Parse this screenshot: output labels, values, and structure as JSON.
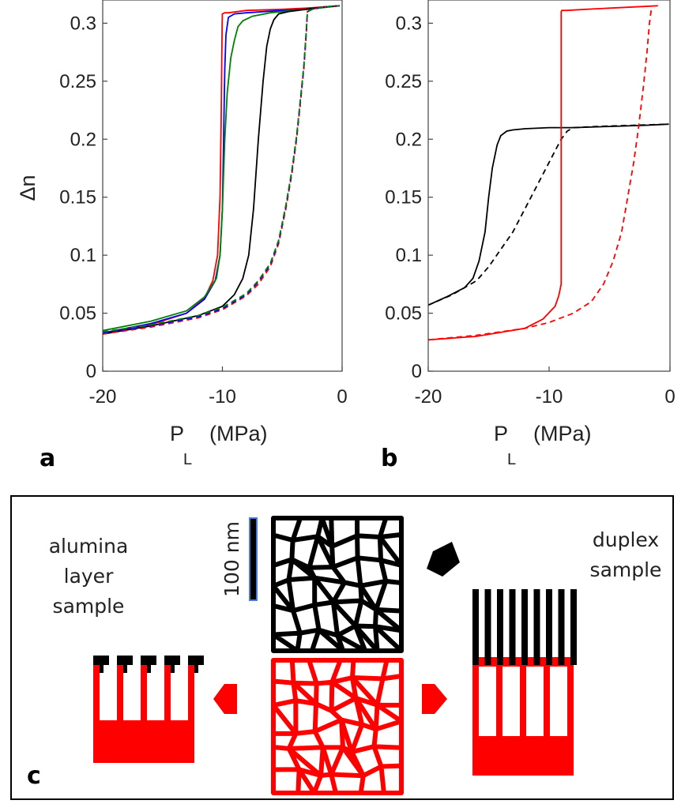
{
  "panels": {
    "a": {
      "label": "a"
    },
    "b": {
      "label": "b"
    },
    "c": {
      "label": "c"
    }
  },
  "chart_data": [
    {
      "type": "line",
      "panel": "a",
      "xlabel_main": "P",
      "xlabel_sub": "L",
      "xlabel_unit": "(MPa)",
      "ylabel": "Δn",
      "xlim": [
        -20,
        0
      ],
      "ylim": [
        0,
        0.32
      ],
      "xticks": [
        -20,
        -10,
        0
      ],
      "xtick_labels": [
        "-20",
        "-10",
        "0"
      ],
      "yticks": [
        0,
        0.05,
        0.1,
        0.15,
        0.2,
        0.25,
        0.3
      ],
      "ytick_labels": [
        "0",
        "0.05",
        "0.1",
        "0.15",
        "0.2",
        "0.25",
        "0.3"
      ],
      "series": [
        {
          "color": "#ff0000",
          "style": "solid",
          "x": [
            -20,
            -16,
            -13,
            -11.5,
            -10.8,
            -10.4,
            -10.2,
            -10.1,
            -10.05,
            -10.02,
            -10,
            -9.8,
            -9.5,
            -8,
            -5,
            -3,
            -1.5,
            -0.2
          ],
          "y": [
            0.032,
            0.04,
            0.05,
            0.063,
            0.078,
            0.1,
            0.15,
            0.22,
            0.27,
            0.3,
            0.308,
            0.309,
            0.309,
            0.311,
            0.312,
            0.313,
            0.314,
            0.315
          ]
        },
        {
          "color": "#0000ff",
          "style": "solid",
          "x": [
            -20,
            -16,
            -13,
            -11.5,
            -10.6,
            -10.2,
            -10,
            -9.9,
            -9.8,
            -9.7,
            -9.5,
            -9,
            -8,
            -5,
            -3,
            -1.5,
            -0.2
          ],
          "y": [
            0.033,
            0.041,
            0.05,
            0.062,
            0.078,
            0.1,
            0.14,
            0.2,
            0.26,
            0.29,
            0.305,
            0.308,
            0.309,
            0.311,
            0.312,
            0.314,
            0.315
          ]
        },
        {
          "color": "#008000",
          "style": "solid",
          "x": [
            -20,
            -16,
            -13,
            -11.5,
            -10.5,
            -10.2,
            -10,
            -9.8,
            -9.6,
            -9.3,
            -9,
            -8.7,
            -8.3,
            -7.5,
            -6,
            -4,
            -2,
            -0.2
          ],
          "y": [
            0.035,
            0.043,
            0.052,
            0.064,
            0.08,
            0.1,
            0.14,
            0.2,
            0.24,
            0.27,
            0.285,
            0.297,
            0.302,
            0.306,
            0.309,
            0.311,
            0.313,
            0.315
          ]
        },
        {
          "color": "#000000",
          "style": "solid",
          "x": [
            -20,
            -16,
            -12,
            -10,
            -9,
            -8.3,
            -7.8,
            -7.4,
            -7,
            -6.6,
            -6.3,
            -6,
            -5.7,
            -5.3,
            -4.5,
            -3,
            -1.5,
            -0.2
          ],
          "y": [
            0.032,
            0.039,
            0.048,
            0.056,
            0.066,
            0.08,
            0.1,
            0.14,
            0.2,
            0.25,
            0.28,
            0.295,
            0.303,
            0.308,
            0.31,
            0.312,
            0.314,
            0.315
          ]
        },
        {
          "color": "#ff0000",
          "style": "dashed",
          "x": [
            -20,
            -16,
            -12,
            -10,
            -8,
            -7,
            -6,
            -5.3,
            -4.7,
            -4.2,
            -3.8,
            -3.5,
            -3.2,
            -3,
            -2.9,
            -2.5,
            -1.5,
            -0.2
          ],
          "y": [
            0.032,
            0.038,
            0.046,
            0.053,
            0.065,
            0.075,
            0.09,
            0.11,
            0.14,
            0.17,
            0.2,
            0.23,
            0.26,
            0.29,
            0.31,
            0.312,
            0.314,
            0.315
          ]
        },
        {
          "color": "#0000ff",
          "style": "dashed",
          "x": [
            -20,
            -16,
            -12,
            -10,
            -8,
            -7,
            -6,
            -5.3,
            -4.7,
            -4.2,
            -3.8,
            -3.5,
            -3.2,
            -3,
            -2.9,
            -2.5,
            -1.5,
            -0.2
          ],
          "y": [
            0.033,
            0.039,
            0.047,
            0.054,
            0.066,
            0.077,
            0.092,
            0.112,
            0.142,
            0.172,
            0.202,
            0.232,
            0.262,
            0.292,
            0.31,
            0.312,
            0.314,
            0.315
          ]
        },
        {
          "color": "#008000",
          "style": "dashed",
          "x": [
            -20,
            -16,
            -12,
            -10,
            -8,
            -7,
            -6,
            -5.3,
            -4.7,
            -4.2,
            -3.8,
            -3.5,
            -3.2,
            -3,
            -2.9,
            -2.5,
            -1.5,
            -0.2
          ],
          "y": [
            0.034,
            0.04,
            0.048,
            0.055,
            0.067,
            0.078,
            0.093,
            0.113,
            0.143,
            0.173,
            0.203,
            0.233,
            0.263,
            0.293,
            0.31,
            0.312,
            0.314,
            0.315
          ]
        }
      ]
    },
    {
      "type": "line",
      "panel": "b",
      "xlabel_main": "P",
      "xlabel_sub": "L",
      "xlabel_unit": "(MPa)",
      "ylabel": "",
      "xlim": [
        -20,
        0
      ],
      "ylim": [
        0,
        0.32
      ],
      "xticks": [
        -20,
        -10,
        0
      ],
      "xtick_labels": [
        "-20",
        "-10",
        "0"
      ],
      "yticks": [
        0,
        0.05,
        0.1,
        0.15,
        0.2,
        0.25,
        0.3
      ],
      "ytick_labels": [
        "0",
        "0.05",
        "0.1",
        "0.15",
        "0.2",
        "0.25",
        "0.3"
      ],
      "series": [
        {
          "color": "#000000",
          "style": "solid",
          "x": [
            -20,
            -18.5,
            -17,
            -16.3,
            -15.8,
            -15.3,
            -15,
            -14.7,
            -14.3,
            -14,
            -13.5,
            -13,
            -12,
            -10,
            -8,
            -5,
            -2,
            -0.1
          ],
          "y": [
            0.057,
            0.064,
            0.072,
            0.08,
            0.095,
            0.12,
            0.15,
            0.175,
            0.195,
            0.203,
            0.207,
            0.208,
            0.209,
            0.21,
            0.21,
            0.211,
            0.212,
            0.213
          ]
        },
        {
          "color": "#000000",
          "style": "dashed",
          "x": [
            -20,
            -18,
            -16,
            -15,
            -14,
            -13,
            -12,
            -11,
            -10,
            -9.5,
            -9,
            -8.5,
            -8,
            -6,
            -3,
            -0.1
          ],
          "y": [
            0.057,
            0.066,
            0.078,
            0.09,
            0.105,
            0.12,
            0.14,
            0.16,
            0.18,
            0.19,
            0.2,
            0.207,
            0.21,
            0.211,
            0.212,
            0.213
          ]
        },
        {
          "color": "#ff0000",
          "style": "solid",
          "x": [
            -20,
            -16,
            -12,
            -10.5,
            -9.5,
            -9.2,
            -9,
            -9,
            -9,
            -9,
            -8.95,
            -8.8,
            -8.5,
            -7,
            -5,
            -3,
            -1
          ],
          "y": [
            0.027,
            0.03,
            0.037,
            0.045,
            0.056,
            0.065,
            0.075,
            0.085,
            0.2,
            0.31,
            0.311,
            0.311,
            0.311,
            0.312,
            0.313,
            0.314,
            0.315
          ]
        },
        {
          "color": "#ff0000",
          "style": "dashed",
          "x": [
            -20,
            -16,
            -12,
            -10,
            -8,
            -6.5,
            -5.5,
            -4.7,
            -4,
            -3.5,
            -3,
            -2.6,
            -2.2,
            -1.9,
            -1.7,
            -1.5
          ],
          "y": [
            0.027,
            0.031,
            0.037,
            0.042,
            0.05,
            0.06,
            0.075,
            0.095,
            0.12,
            0.15,
            0.18,
            0.21,
            0.245,
            0.275,
            0.3,
            0.315
          ]
        }
      ]
    }
  ],
  "panel_c": {
    "left_caption": [
      "alumina",
      "layer",
      "sample"
    ],
    "right_caption": [
      "duplex",
      "sample"
    ],
    "scale_bar_label": "100 nm",
    "colors": {
      "alumina": "#ff0000",
      "duplex_top": "#000000"
    }
  }
}
